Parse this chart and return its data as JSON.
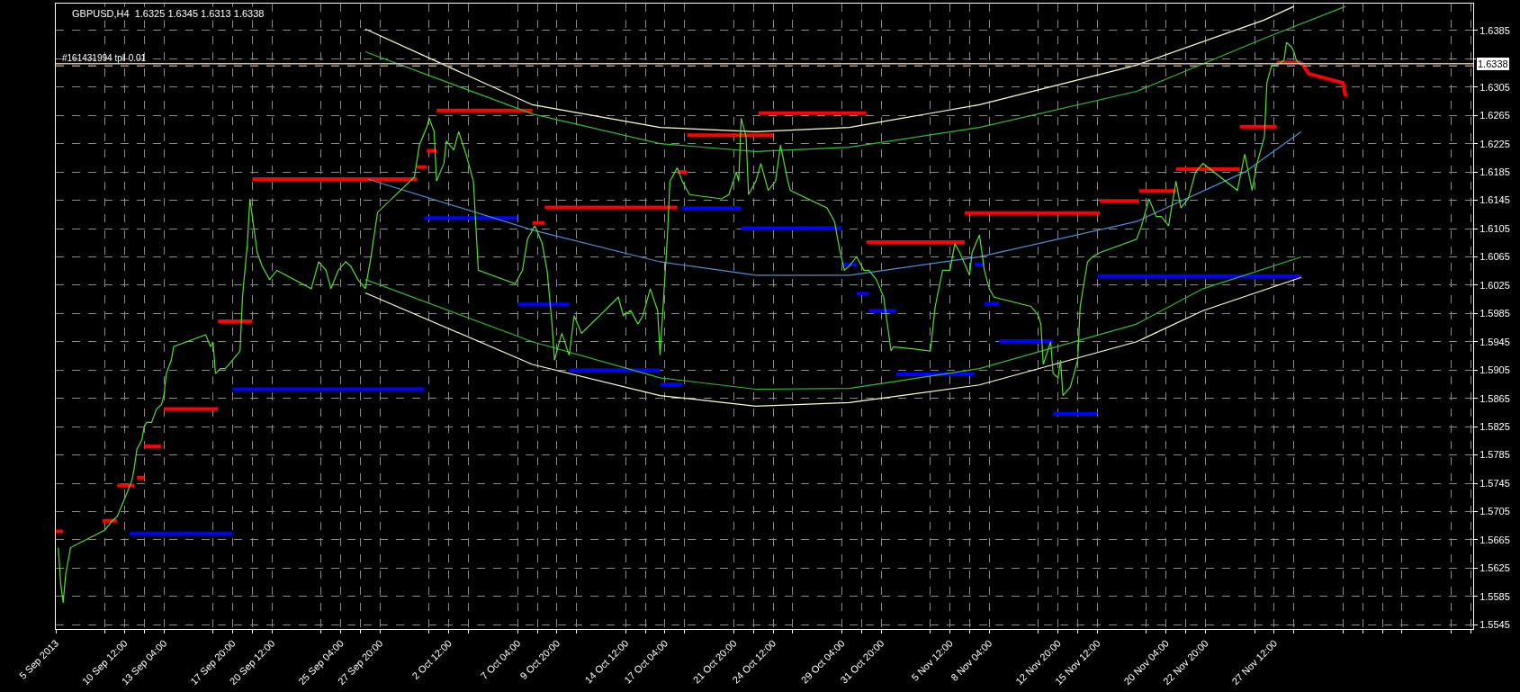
{
  "chart_data": {
    "type": "line",
    "title": "GBPUSD,H4  1.6325 1.6345 1.6313 1.6338",
    "xlim": [
      "2013-09-05T20:00",
      "2013-12-11T00:00"
    ],
    "ylim": [
      1.5539,
      1.6423
    ],
    "xticks": [
      {
        "value": "2013-09-05T20:00",
        "label": "5 Sep 2013"
      },
      {
        "value": "2013-09-09T04:00",
        "label": null
      },
      {
        "value": "2013-09-10T12:00",
        "label": "10 Sep 12:00"
      },
      {
        "value": "2013-09-11T20:00",
        "label": null
      },
      {
        "value": "2013-09-13T04:00",
        "label": "13 Sep 04:00"
      },
      {
        "value": "2013-09-16T12:00",
        "label": null
      },
      {
        "value": "2013-09-17T20:00",
        "label": "17 Sep 20:00"
      },
      {
        "value": "2013-09-19T04:00",
        "label": null
      },
      {
        "value": "2013-09-20T12:00",
        "label": "20 Sep 12:00"
      },
      {
        "value": "2013-09-23T20:00",
        "label": null
      },
      {
        "value": "2013-09-25T04:00",
        "label": "25 Sep 04:00"
      },
      {
        "value": "2013-09-26T12:00",
        "label": null
      },
      {
        "value": "2013-09-27T20:00",
        "label": "27 Sep 20:00"
      },
      {
        "value": "2013-10-01T04:00",
        "label": null
      },
      {
        "value": "2013-10-02T12:00",
        "label": "2 Oct 12:00"
      },
      {
        "value": "2013-10-03T20:00",
        "label": null
      },
      {
        "value": "2013-10-07T04:00",
        "label": "7 Oct 04:00"
      },
      {
        "value": "2013-10-08T12:00",
        "label": null
      },
      {
        "value": "2013-10-09T20:00",
        "label": "9 Oct 20:00"
      },
      {
        "value": "2013-10-11T04:00",
        "label": null
      },
      {
        "value": "2013-10-14T12:00",
        "label": "14 Oct 12:00"
      },
      {
        "value": "2013-10-15T20:00",
        "label": null
      },
      {
        "value": "2013-10-17T04:00",
        "label": "17 Oct 04:00"
      },
      {
        "value": "2013-10-18T12:00",
        "label": null
      },
      {
        "value": "2013-10-21T20:00",
        "label": "21 Oct 20:00"
      },
      {
        "value": "2013-10-23T04:00",
        "label": null
      },
      {
        "value": "2013-10-24T12:00",
        "label": "24 Oct 12:00"
      },
      {
        "value": "2013-10-25T20:00",
        "label": null
      },
      {
        "value": "2013-10-29T04:00",
        "label": "29 Oct 04:00"
      },
      {
        "value": "2013-10-30T12:00",
        "label": null
      },
      {
        "value": "2013-10-31T20:00",
        "label": "31 Oct 20:00"
      },
      {
        "value": "2013-11-04T04:00",
        "label": null
      },
      {
        "value": "2013-11-05T12:00",
        "label": "5 Nov 12:00"
      },
      {
        "value": "2013-11-06T20:00",
        "label": null
      },
      {
        "value": "2013-11-08T04:00",
        "label": "8 Nov 04:00"
      },
      {
        "value": "2013-11-11T12:00",
        "label": null
      },
      {
        "value": "2013-11-12T20:00",
        "label": "12 Nov 20:00"
      },
      {
        "value": "2013-11-14T04:00",
        "label": null
      },
      {
        "value": "2013-11-15T12:00",
        "label": "15 Nov 12:00"
      },
      {
        "value": "2013-11-18T20:00",
        "label": null
      },
      {
        "value": "2013-11-20T04:00",
        "label": "20 Nov 04:00"
      },
      {
        "value": "2013-11-21T12:00",
        "label": null
      },
      {
        "value": "2013-11-22T20:00",
        "label": "22 Nov 20:00"
      },
      {
        "value": "2013-11-26T04:00",
        "label": null
      },
      {
        "value": "2013-11-27T12:00",
        "label": "27 Nov 12:00"
      },
      {
        "value": "2013-11-28T20:00",
        "label": null
      },
      {
        "value": "2013-12-02T04:00",
        "label": null
      },
      {
        "value": "2013-12-03T12:00",
        "label": null
      },
      {
        "value": "2013-12-04T20:00",
        "label": null
      },
      {
        "value": "2013-12-06T04:00",
        "label": null
      },
      {
        "value": "2013-12-09T12:00",
        "label": null
      },
      {
        "value": "2013-12-10T20:00",
        "label": null
      }
    ],
    "yticks": [
      1.5545,
      1.5585,
      1.5625,
      1.5665,
      1.5705,
      1.5745,
      1.5785,
      1.5825,
      1.5865,
      1.5905,
      1.5945,
      1.5985,
      1.6025,
      1.6065,
      1.6105,
      1.6145,
      1.6185,
      1.6225,
      1.6265,
      1.6305,
      {
        "value": 1.6345,
        "label": null
      },
      1.6385
    ],
    "grid": true,
    "marker": "none",
    "ref_lines": [
      {
        "axis": "y",
        "value": 1.6338,
        "label": "1.6338",
        "color": "#c0c0c0",
        "line_style": "solid"
      },
      {
        "axis": "y",
        "value": 1.6335,
        "label": "#161431994 tp‖ 0.01",
        "color": "#d08a50",
        "line_style": "dashed"
      }
    ],
    "series": [
      {
        "color": "#ffffcc",
        "line_style": "solid",
        "x": [
          "2013-09-26T20:00",
          "2013-10-08T04:00",
          "2013-10-16T20:00",
          "2013-10-23T08:00",
          "2013-10-29T16:00",
          "2013-11-07T12:00",
          "2013-11-18T04:00",
          "2013-11-26T20:00",
          "2013-11-28T20:00"
        ],
        "values": [
          1.6387,
          1.628,
          1.6248,
          1.6242,
          1.6248,
          1.628,
          1.6336,
          1.64,
          1.6419
        ]
      },
      {
        "color": "#33bb33",
        "line_style": "solid",
        "x": [
          "2013-09-26T20:00",
          "2013-10-08T04:00",
          "2013-10-16T20:00",
          "2013-10-23T08:00",
          "2013-10-29T16:00",
          "2013-11-07T12:00",
          "2013-11-18T04:00",
          "2013-11-26T20:00",
          "2013-12-02T08:00"
        ],
        "values": [
          1.6355,
          1.6267,
          1.6225,
          1.6214,
          1.622,
          1.6248,
          1.6299,
          1.6374,
          1.6419
        ]
      },
      {
        "color": "#4a90d9",
        "line_style": "solid",
        "x": [
          "2013-09-27T00:00",
          "2013-10-08T04:00",
          "2013-10-16T20:00",
          "2013-10-23T08:00",
          "2013-10-29T16:00",
          "2013-11-07T12:00",
          "2013-11-18T04:00",
          "2013-11-25T12:00",
          "2013-11-29T08:00"
        ],
        "values": [
          1.6175,
          1.6103,
          1.6058,
          1.6039,
          1.6039,
          1.6065,
          1.6115,
          1.6185,
          1.6242
        ]
      },
      {
        "color": "#33bb33",
        "line_style": "solid",
        "x": [
          "2013-09-26T20:00",
          "2013-10-08T04:00",
          "2013-10-16T20:00",
          "2013-10-23T08:00",
          "2013-10-29T16:00",
          "2013-11-07T12:00",
          "2013-11-18T04:00",
          "2013-11-22T16:00",
          "2013-11-29T08:00"
        ],
        "values": [
          1.6033,
          1.5945,
          1.5894,
          1.5878,
          1.5879,
          1.5907,
          1.597,
          1.602,
          1.6065
        ]
      },
      {
        "color": "#ffffcc",
        "line_style": "solid",
        "x": [
          "2013-09-26T20:00",
          "2013-10-08T04:00",
          "2013-10-16T20:00",
          "2013-10-23T08:00",
          "2013-10-29T16:00",
          "2013-11-07T12:00",
          "2013-11-18T04:00",
          "2013-11-22T16:00",
          "2013-11-29T08:00"
        ],
        "values": [
          1.6014,
          1.5913,
          1.5869,
          1.5854,
          1.5859,
          1.5884,
          1.5945,
          1.5989,
          1.6036
        ]
      },
      {
        "color": "#0000ff",
        "line_style": "solid",
        "x": [
          "2013-09-10T20:00",
          "2013-09-17T20:00"
        ],
        "values": [
          1.5674,
          1.5674
        ]
      },
      {
        "color": "#0000ff",
        "line_style": "solid",
        "x": [
          "2013-09-17T20:00",
          "2013-09-30T20:00"
        ],
        "values": [
          1.5878,
          1.5878
        ]
      },
      {
        "color": "#0000ff",
        "line_style": "solid",
        "x": [
          "2013-09-30T20:00",
          "2013-10-07T04:00"
        ],
        "values": [
          1.612,
          1.612
        ]
      },
      {
        "color": "#0000ff",
        "line_style": "solid",
        "x": [
          "2013-10-07T04:00",
          "2013-10-10T16:00"
        ],
        "values": [
          1.5998,
          1.5998
        ]
      },
      {
        "color": "#0000ff",
        "line_style": "solid",
        "x": [
          "2013-10-10T16:00",
          "2013-10-16T20:00"
        ],
        "values": [
          1.5905,
          1.5905
        ]
      },
      {
        "color": "#0000ff",
        "line_style": "solid",
        "x": [
          "2013-10-16T20:00",
          "2013-10-18T08:00"
        ],
        "values": [
          1.5885,
          1.5885
        ]
      },
      {
        "color": "#0000ff",
        "line_style": "solid",
        "x": [
          "2013-10-18T08:00",
          "2013-10-22T08:00"
        ],
        "values": [
          1.6134,
          1.6134
        ]
      },
      {
        "color": "#0000ff",
        "line_style": "solid",
        "x": [
          "2013-10-22T08:00",
          "2013-10-29T04:00"
        ],
        "values": [
          1.6106,
          1.6106
        ]
      },
      {
        "color": "#0000ff",
        "line_style": "solid",
        "x": [
          "2013-10-29T04:00",
          "2013-10-30T04:00"
        ],
        "values": [
          1.6054,
          1.6054
        ]
      },
      {
        "color": "#0000ff",
        "line_style": "solid",
        "x": [
          "2013-10-30T04:00",
          "2013-10-31T00:00"
        ],
        "values": [
          1.6013,
          1.6013
        ]
      },
      {
        "color": "#0000ff",
        "line_style": "solid",
        "x": [
          "2013-10-31T00:00",
          "2013-11-01T20:00"
        ],
        "values": [
          1.5989,
          1.5989
        ]
      },
      {
        "color": "#0000ff",
        "line_style": "solid",
        "x": [
          "2013-11-01T20:00",
          "2013-11-07T04:00"
        ],
        "values": [
          1.5899,
          1.5899
        ]
      },
      {
        "color": "#0000ff",
        "line_style": "solid",
        "x": [
          "2013-11-07T04:00",
          "2013-11-07T20:00"
        ],
        "values": [
          1.6054,
          1.6054
        ]
      },
      {
        "color": "#0000ff",
        "line_style": "solid",
        "x": [
          "2013-11-07T20:00",
          "2013-11-08T20:00"
        ],
        "values": [
          1.5999,
          1.5999
        ]
      },
      {
        "color": "#0000ff",
        "line_style": "solid",
        "x": [
          "2013-11-08T20:00",
          "2013-11-12T12:00"
        ],
        "values": [
          1.5946,
          1.5946
        ]
      },
      {
        "color": "#0000ff",
        "line_style": "solid",
        "x": [
          "2013-11-12T12:00",
          "2013-11-15T12:00"
        ],
        "values": [
          1.5843,
          1.5843
        ]
      },
      {
        "color": "#0000ff",
        "line_style": "solid",
        "x": [
          "2013-11-15T12:00",
          "2013-11-29T08:00"
        ],
        "values": [
          1.6038,
          1.6038
        ]
      },
      {
        "color": "#ff0000",
        "line_style": "solid",
        "x": [
          "2013-09-05T20:00",
          "2013-09-06T08:00"
        ],
        "values": [
          1.5677,
          1.5677
        ]
      },
      {
        "color": "#ff0000",
        "line_style": "solid",
        "x": [
          "2013-09-09T00:00",
          "2013-09-10T00:00"
        ],
        "values": [
          1.5692,
          1.5692
        ]
      },
      {
        "color": "#ff0000",
        "line_style": "solid",
        "x": [
          "2013-09-10T00:00",
          "2013-09-11T04:00"
        ],
        "values": [
          1.5742,
          1.5742
        ]
      },
      {
        "color": "#ff0000",
        "line_style": "solid",
        "x": [
          "2013-09-11T08:00",
          "2013-09-11T20:00"
        ],
        "values": [
          1.5753,
          1.5753
        ]
      },
      {
        "color": "#ff0000",
        "line_style": "solid",
        "x": [
          "2013-09-11T20:00",
          "2013-09-13T00:00"
        ],
        "values": [
          1.5797,
          1.5797
        ]
      },
      {
        "color": "#ff0000",
        "line_style": "solid",
        "x": [
          "2013-09-13T04:00",
          "2013-09-16T20:00"
        ],
        "values": [
          1.585,
          1.585
        ]
      },
      {
        "color": "#ff0000",
        "line_style": "solid",
        "x": [
          "2013-09-16T20:00",
          "2013-09-19T04:00"
        ],
        "values": [
          1.5974,
          1.5974
        ]
      },
      {
        "color": "#ff0000",
        "line_style": "solid",
        "x": [
          "2013-09-19T04:00",
          "2013-09-30T08:00"
        ],
        "values": [
          1.6175,
          1.6175
        ]
      },
      {
        "color": "#ff0000",
        "line_style": "solid",
        "x": [
          "2013-09-30T08:00",
          "2013-10-01T00:00"
        ],
        "values": [
          1.6192,
          1.6192
        ]
      },
      {
        "color": "#ff0000",
        "line_style": "solid",
        "x": [
          "2013-10-01T00:00",
          "2013-10-01T16:00"
        ],
        "values": [
          1.6215,
          1.6215
        ]
      },
      {
        "color": "#ff0000",
        "line_style": "solid",
        "x": [
          "2013-10-01T16:00",
          "2013-10-08T04:00"
        ],
        "values": [
          1.6272,
          1.6272
        ]
      },
      {
        "color": "#ff0000",
        "line_style": "solid",
        "x": [
          "2013-10-08T04:00",
          "2013-10-09T00:00"
        ],
        "values": [
          1.6113,
          1.6113
        ]
      },
      {
        "color": "#ff0000",
        "line_style": "solid",
        "x": [
          "2013-10-09T00:00",
          "2013-10-18T00:00"
        ],
        "values": [
          1.6135,
          1.6135
        ]
      },
      {
        "color": "#ff0000",
        "line_style": "solid",
        "x": [
          "2013-10-18T00:00",
          "2013-10-18T16:00"
        ],
        "values": [
          1.6185,
          1.6185
        ]
      },
      {
        "color": "#ff0000",
        "line_style": "solid",
        "x": [
          "2013-10-18T16:00",
          "2013-10-24T12:00"
        ],
        "values": [
          1.6237,
          1.6237
        ]
      },
      {
        "color": "#ff0000",
        "line_style": "solid",
        "x": [
          "2013-10-23T12:00",
          "2013-10-30T20:00"
        ],
        "values": [
          1.6268,
          1.6268
        ]
      },
      {
        "color": "#ff0000",
        "line_style": "solid",
        "x": [
          "2013-10-30T20:00",
          "2013-11-06T12:00"
        ],
        "values": [
          1.6086,
          1.6086
        ]
      },
      {
        "color": "#ff0000",
        "line_style": "solid",
        "x": [
          "2013-11-06T12:00",
          "2013-11-15T16:00"
        ],
        "values": [
          1.6127,
          1.6127
        ]
      },
      {
        "color": "#ff0000",
        "line_style": "solid",
        "x": [
          "2013-11-15T16:00",
          "2013-11-18T08:00"
        ],
        "values": [
          1.6144,
          1.6144
        ]
      },
      {
        "color": "#ff0000",
        "line_style": "solid",
        "x": [
          "2013-11-18T08:00",
          "2013-11-20T20:00"
        ],
        "values": [
          1.6158,
          1.6158
        ]
      },
      {
        "color": "#ff0000",
        "line_style": "solid",
        "x": [
          "2013-11-20T20:00",
          "2013-11-25T04:00"
        ],
        "values": [
          1.6189,
          1.6189
        ]
      },
      {
        "color": "#ff0000",
        "line_style": "solid",
        "x": [
          "2013-11-25T04:00",
          "2013-11-27T16:00"
        ],
        "values": [
          1.6249,
          1.6249
        ]
      },
      {
        "color": "#ff0000",
        "line_style": "solid",
        "x": [
          "2013-11-27T16:00",
          "2013-11-29T08:00"
        ],
        "values": [
          1.634,
          1.634
        ]
      },
      {
        "color": "#55dd33",
        "line_style": "solid",
        "x": [
          "2013-09-06T00:00",
          "2013-09-06T04:00",
          "2013-09-06T08:00",
          "2013-09-06T12:00",
          "2013-09-06T20:00",
          "2013-09-09T04:00",
          "2013-09-09T16:00",
          "2013-09-10T00:00",
          "2013-09-10T12:00",
          "2013-09-11T00:00",
          "2013-09-11T04:00",
          "2013-09-11T08:00",
          "2013-09-11T16:00",
          "2013-09-11T20:00",
          "2013-09-12T00:00",
          "2013-09-12T08:00",
          "2013-09-12T16:00",
          "2013-09-13T00:00",
          "2013-09-13T04:00",
          "2013-09-13T08:00",
          "2013-09-13T16:00",
          "2013-09-13T20:00",
          "2013-09-16T00:00",
          "2013-09-16T08:00",
          "2013-09-16T12:00",
          "2013-09-16T16:00",
          "2013-09-17T00:00",
          "2013-09-17T08:00",
          "2013-09-17T20:00",
          "2013-09-18T08:00",
          "2013-09-18T12:00",
          "2013-09-18T20:00",
          "2013-09-19T00:00",
          "2013-09-19T04:00",
          "2013-09-19T12:00",
          "2013-09-19T20:00",
          "2013-09-20T08:00",
          "2013-09-20T20:00",
          "2013-09-23T04:00",
          "2013-09-23T16:00",
          "2013-09-24T04:00",
          "2013-09-24T12:00",
          "2013-09-25T00:00",
          "2013-09-25T12:00",
          "2013-09-25T20:00",
          "2013-09-26T08:00",
          "2013-09-26T20:00",
          "2013-09-27T04:00",
          "2013-09-27T16:00",
          "2013-09-30T04:00",
          "2013-09-30T12:00",
          "2013-10-01T00:00",
          "2013-10-01T04:00",
          "2013-10-01T12:00",
          "2013-10-01T16:00",
          "2013-10-02T04:00",
          "2013-10-02T08:00",
          "2013-10-02T20:00",
          "2013-10-03T04:00",
          "2013-10-03T16:00",
          "2013-10-04T04:00",
          "2013-10-04T08:00",
          "2013-10-04T12:00",
          "2013-10-07T00:00",
          "2013-10-07T12:00",
          "2013-10-07T20:00",
          "2013-10-08T08:00",
          "2013-10-08T20:00",
          "2013-10-09T04:00",
          "2013-10-09T12:00",
          "2013-10-09T16:00",
          "2013-10-10T00:00",
          "2013-10-10T04:00",
          "2013-10-10T16:00",
          "2013-10-11T00:00",
          "2013-10-11T12:00",
          "2013-10-14T00:00",
          "2013-10-14T08:00",
          "2013-10-14T20:00",
          "2013-10-15T08:00",
          "2013-10-15T16:00",
          "2013-10-16T04:00",
          "2013-10-16T16:00",
          "2013-10-16T20:00",
          "2013-10-17T08:00",
          "2013-10-17T12:00",
          "2013-10-18T00:00",
          "2013-10-18T08:00",
          "2013-10-18T20:00",
          "2013-10-21T00:00",
          "2013-10-21T12:00",
          "2013-10-22T00:00",
          "2013-10-22T04:00",
          "2013-10-22T08:00",
          "2013-10-22T16:00",
          "2013-10-22T20:00",
          "2013-10-23T08:00",
          "2013-10-23T16:00",
          "2013-10-24T04:00",
          "2013-10-24T16:00",
          "2013-10-25T00:00",
          "2013-10-25T12:00",
          "2013-10-25T16:00",
          "2013-10-28T04:00",
          "2013-10-28T16:00",
          "2013-10-29T00:00",
          "2013-10-29T08:00",
          "2013-10-29T16:00",
          "2013-10-30T04:00",
          "2013-10-30T16:00",
          "2013-10-31T00:00",
          "2013-10-31T12:00",
          "2013-11-01T00:00",
          "2013-11-01T12:00",
          "2013-11-01T16:00",
          "2013-11-04T04:00",
          "2013-11-04T12:00",
          "2013-11-05T00:00",
          "2013-11-05T12:00",
          "2013-11-05T20:00",
          "2013-11-06T04:00",
          "2013-11-06T20:00",
          "2013-11-07T00:00",
          "2013-11-07T12:00",
          "2013-11-07T20:00",
          "2013-11-08T04:00",
          "2013-11-08T12:00",
          "2013-11-11T00:00",
          "2013-11-11T12:00",
          "2013-11-11T16:00",
          "2013-11-11T20:00",
          "2013-11-12T08:00",
          "2013-11-12T12:00",
          "2013-11-12T20:00",
          "2013-11-13T00:00",
          "2013-11-13T04:00",
          "2013-11-13T16:00",
          "2013-11-14T04:00",
          "2013-11-14T08:00",
          "2013-11-14T20:00",
          "2013-11-15T04:00",
          "2013-11-15T16:00",
          "2013-11-18T04:00",
          "2013-11-18T12:00",
          "2013-11-19T00:00",
          "2013-11-19T12:00",
          "2013-11-19T20:00",
          "2013-11-20T08:00",
          "2013-11-20T20:00",
          "2013-11-21T04:00",
          "2013-11-21T16:00",
          "2013-11-22T04:00",
          "2013-11-22T16:00",
          "2013-11-25T00:00",
          "2013-11-25T12:00",
          "2013-11-26T00:00",
          "2013-11-26T08:00",
          "2013-11-26T20:00",
          "2013-11-27T00:00",
          "2013-11-27T08:00",
          "2013-11-27T16:00",
          "2013-11-28T04:00",
          "2013-11-28T08:00",
          "2013-11-28T16:00",
          "2013-11-28T20:00",
          "2013-11-29T00:00",
          "2013-11-29T08:00"
        ],
        "values": [
          1.5654,
          1.5603,
          1.5576,
          1.5616,
          1.5654,
          1.5679,
          1.5692,
          1.5698,
          1.5723,
          1.5749,
          1.5768,
          1.5793,
          1.5806,
          1.5825,
          1.5831,
          1.5831,
          1.585,
          1.5856,
          1.5869,
          1.59,
          1.5919,
          1.5938,
          1.5955,
          1.5938,
          1.5945,
          1.59,
          1.5907,
          1.5907,
          1.5919,
          1.5932,
          1.6008,
          1.6084,
          1.6147,
          1.6122,
          1.6071,
          1.6052,
          1.6033,
          1.6046,
          1.602,
          1.6058,
          1.6046,
          1.602,
          1.6046,
          1.6058,
          1.6052,
          1.6033,
          1.602,
          1.6058,
          1.6128,
          1.6178,
          1.6223,
          1.6248,
          1.6261,
          1.6242,
          1.6172,
          1.6197,
          1.6229,
          1.6216,
          1.6242,
          1.621,
          1.6172,
          1.6109,
          1.6046,
          1.6027,
          1.6046,
          1.609,
          1.6109,
          1.6084,
          1.6046,
          1.597,
          1.5919,
          1.5945,
          1.5957,
          1.5926,
          1.5982,
          1.5957,
          1.6008,
          1.5982,
          1.5989,
          1.597,
          1.5982,
          1.602,
          1.5989,
          1.5926,
          1.6096,
          1.6172,
          1.6191,
          1.6172,
          1.6153,
          1.6147,
          1.6153,
          1.6185,
          1.6172,
          1.6261,
          1.6235,
          1.6153,
          1.6172,
          1.6197,
          1.6159,
          1.6172,
          1.6223,
          1.6172,
          1.6159,
          1.6134,
          1.6115,
          1.6077,
          1.6046,
          1.6052,
          1.6065,
          1.6046,
          1.6046,
          1.6033,
          1.6008,
          1.5932,
          1.5938,
          1.5932,
          1.5995,
          1.6046,
          1.6046,
          1.6084,
          1.6071,
          1.6039,
          1.6071,
          1.6096,
          1.6046,
          1.602,
          1.6008,
          1.5995,
          1.5982,
          1.597,
          1.5913,
          1.5945,
          1.59,
          1.5894,
          1.5919,
          1.5869,
          1.5881,
          1.5919,
          1.5995,
          1.6058,
          1.6065,
          1.6071,
          1.609,
          1.6109,
          1.6147,
          1.6122,
          1.6122,
          1.6109,
          1.6172,
          1.6134,
          1.6147,
          1.6185,
          1.6197,
          1.6159,
          1.621,
          1.6159,
          1.6197,
          1.6235,
          1.6311,
          1.6336,
          1.6336,
          1.6343,
          1.6368,
          1.6362,
          1.6355,
          1.6343,
          1.6336
        ]
      },
      {
        "color": "#ff0000",
        "line_style": "solid",
        "x": [
          "2013-11-29T08:00",
          "2013-11-29T20:00",
          "2013-12-02T04:00",
          "2013-12-02T08:00"
        ],
        "values": [
          1.634,
          1.6324,
          1.6311,
          1.6292
        ]
      }
    ]
  }
}
